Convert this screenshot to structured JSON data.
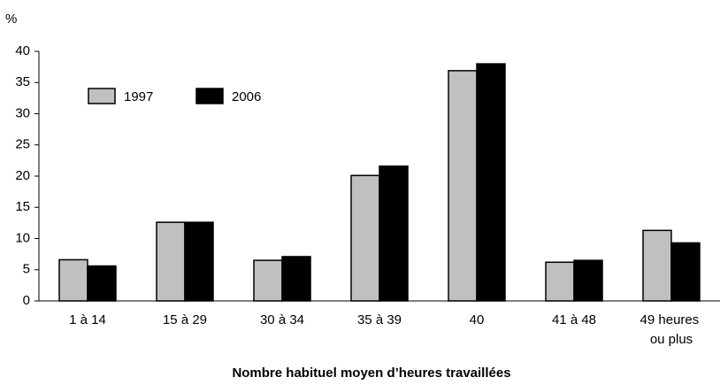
{
  "chart_data": {
    "type": "bar",
    "y_label": "%",
    "x_label": "Nombre habituel moyen d’heures travaillées",
    "categories": [
      "1 à 14",
      "15 à 29",
      "30 à 34",
      "35 à 39",
      "40",
      "41 à 48",
      "49 heures ou plus"
    ],
    "series": [
      {
        "name": "1997",
        "color": "#c0c0c0",
        "values": [
          6.6,
          12.6,
          6.5,
          20.1,
          36.9,
          6.2,
          11.3
        ]
      },
      {
        "name": "2006",
        "color": "#000000",
        "values": [
          5.6,
          12.6,
          7.1,
          21.6,
          38.0,
          6.5,
          9.3
        ]
      }
    ],
    "ylim": [
      0,
      40
    ],
    "yticks": [
      0,
      5,
      10,
      15,
      20,
      25,
      30,
      35,
      40
    ],
    "grid": false,
    "legend": "top-left"
  }
}
